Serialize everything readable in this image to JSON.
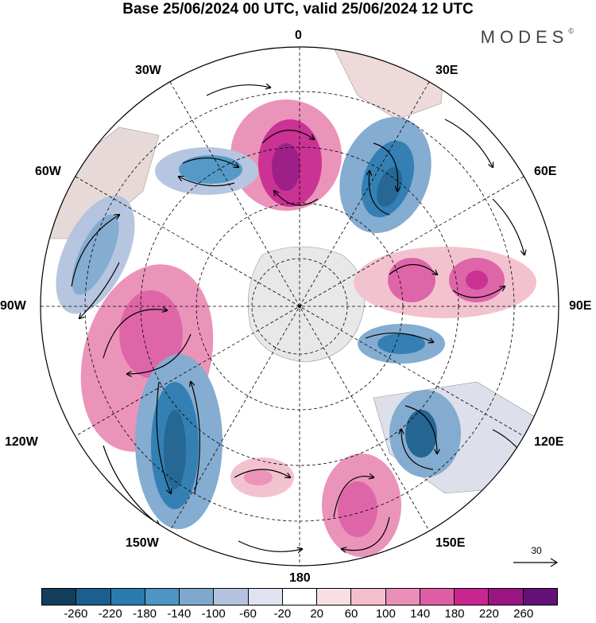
{
  "title": "Base 25/06/2024 00 UTC, valid 25/06/2024 12 UTC",
  "brand": {
    "name": "MODES",
    "mark": "©"
  },
  "longitude_labels": [
    "0",
    "30E",
    "60E",
    "90E",
    "120E",
    "150E",
    "180",
    "150W",
    "120W",
    "90W",
    "60W",
    "30W"
  ],
  "reference_vector": {
    "label": "30"
  },
  "colorbar": {
    "colors": [
      "#123e5c",
      "#1b5f8e",
      "#2a7ab0",
      "#4c95c4",
      "#7fa8cf",
      "#b3c3df",
      "#e0e2f0",
      "#ffffff",
      "#f7dfe4",
      "#f3bfcd",
      "#ea8fb7",
      "#dd5ea4",
      "#c8278f",
      "#9a1482",
      "#63107a"
    ],
    "ticks": [
      "-260",
      "-220",
      "-180",
      "-140",
      "-100",
      "-60",
      "-20",
      "20",
      "60",
      "100",
      "140",
      "180",
      "220",
      "260"
    ]
  }
}
